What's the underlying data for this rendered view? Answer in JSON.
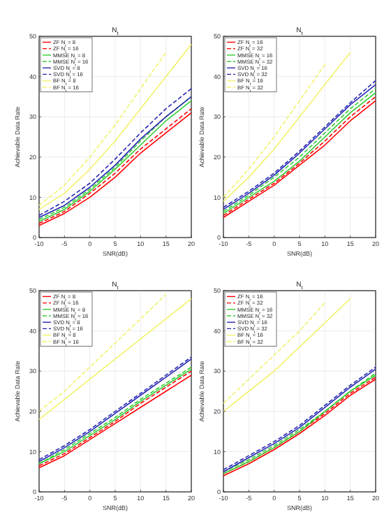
{
  "chart_data": [
    {
      "type": "line",
      "title": "N$_{t}$",
      "xlabel": "SNR(dB)",
      "ylabel": "Achievable Data Rate",
      "x": [
        -10,
        -5,
        0,
        5,
        10,
        15,
        20
      ],
      "xlim": [
        -10,
        20
      ],
      "xticks": [
        -10,
        -5,
        0,
        5,
        10,
        15,
        20
      ],
      "ylim": [
        0,
        50
      ],
      "yticks": [
        0,
        10,
        20,
        30,
        40,
        50
      ],
      "grid": true,
      "legend": "top left",
      "marker": "none",
      "series": [
        {
          "name": "ZF N$_{t}$ = 8",
          "color": "#ff0000",
          "line_style": "solid",
          "values": [
            3,
            6,
            10,
            15,
            21,
            26,
            31
          ]
        },
        {
          "name": "ZF N$_{t}$ = 16",
          "color": "#ff0000",
          "line_style": "dashed",
          "values": [
            3.5,
            6.5,
            11,
            16,
            22,
            27,
            32
          ]
        },
        {
          "name": "MMSE N$_{t}$ = 8",
          "color": "#33cc33",
          "line_style": "solid",
          "values": [
            4,
            7,
            11.5,
            17,
            23,
            29,
            34
          ]
        },
        {
          "name": "MMSE N$_{t}$ = 16",
          "color": "#33cc33",
          "line_style": "dashed",
          "values": [
            4.5,
            7.5,
            12,
            17.5,
            24,
            30,
            35
          ]
        },
        {
          "name": "SVD N$_{t}$ = 8",
          "color": "#2626b3",
          "line_style": "solid",
          "values": [
            5,
            8,
            12.5,
            18,
            24.5,
            30,
            35
          ]
        },
        {
          "name": "SVD N$_{t}$ = 16",
          "color": "#2626b3",
          "line_style": "dashed",
          "values": [
            5.5,
            9,
            13.5,
            19.5,
            26,
            32,
            37
          ]
        },
        {
          "name": "BF N$_{t}$ = 8",
          "color": "#f2f26b",
          "line_style": "solid",
          "values": [
            7,
            11,
            17,
            24,
            32,
            40,
            48
          ]
        },
        {
          "name": "BF N$_{t}$ = 16",
          "color": "#f2f26b",
          "line_style": "dashed",
          "values": [
            8,
            13,
            20,
            28,
            37,
            46,
            null
          ]
        }
      ]
    },
    {
      "type": "line",
      "title": "N$_{t}$",
      "xlabel": "SNR(dB)",
      "ylabel": "Achievable Data Rate",
      "x": [
        -10,
        -5,
        0,
        5,
        10,
        15,
        20
      ],
      "xlim": [
        -10,
        20
      ],
      "xticks": [
        -10,
        -5,
        0,
        5,
        10,
        15,
        20
      ],
      "ylim": [
        0,
        50
      ],
      "yticks": [
        0,
        10,
        20,
        30,
        40,
        50
      ],
      "grid": true,
      "legend": "top left",
      "marker": "none",
      "series": [
        {
          "name": "ZF N$_{t}$ = 16",
          "color": "#ff0000",
          "line_style": "solid",
          "values": [
            5,
            9,
            13,
            18,
            23,
            29,
            34
          ]
        },
        {
          "name": "ZF N$_{t}$ = 32",
          "color": "#ff0000",
          "line_style": "dashed",
          "values": [
            5.5,
            9.5,
            13.5,
            18.5,
            24,
            30,
            35
          ]
        },
        {
          "name": "MMSE N$_{t}$ = 16",
          "color": "#33cc33",
          "line_style": "solid",
          "values": [
            6,
            10,
            14,
            19,
            25,
            31,
            36
          ]
        },
        {
          "name": "MMSE N$_{t}$ = 32",
          "color": "#33cc33",
          "line_style": "dashed",
          "values": [
            6.5,
            10.5,
            15,
            20,
            26,
            32,
            37
          ]
        },
        {
          "name": "SVD N$_{t}$ = 16",
          "color": "#2626b3",
          "line_style": "solid",
          "values": [
            7,
            11,
            15.5,
            21,
            27,
            33,
            38
          ]
        },
        {
          "name": "SVD N$_{t}$ = 32",
          "color": "#2626b3",
          "line_style": "dashed",
          "values": [
            7.5,
            11.5,
            16,
            21.5,
            27.5,
            33.5,
            39
          ]
        },
        {
          "name": "BF N$_{t}$ = 16",
          "color": "#f2f26b",
          "line_style": "solid",
          "values": [
            9,
            15,
            22,
            30,
            38,
            46,
            null
          ]
        },
        {
          "name": "BF N$_{t}$ = 32",
          "color": "#f2f26b",
          "line_style": "dashed",
          "values": [
            10,
            17,
            25,
            34,
            43,
            null,
            null
          ]
        }
      ]
    },
    {
      "type": "line",
      "title": "N$_{t}$",
      "xlabel": "SNR(dB)",
      "ylabel": "Achievable Data Rate",
      "x": [
        -10,
        -5,
        0,
        5,
        10,
        15,
        20
      ],
      "xlim": [
        -10,
        20
      ],
      "xticks": [
        -10,
        -5,
        0,
        5,
        10,
        15,
        20
      ],
      "ylim": [
        0,
        50
      ],
      "yticks": [
        0,
        10,
        20,
        30,
        40,
        50
      ],
      "grid": true,
      "legend": "top left",
      "marker": "none",
      "series": [
        {
          "name": "ZF N$_{t}$ = 8",
          "color": "#ff0000",
          "line_style": "solid",
          "values": [
            6,
            9,
            13,
            17,
            21,
            25,
            29
          ]
        },
        {
          "name": "ZF N$_{t}$ = 16",
          "color": "#ff0000",
          "line_style": "dashed",
          "values": [
            6.5,
            9.5,
            13.5,
            17.5,
            22,
            26,
            30
          ]
        },
        {
          "name": "MMSE N$_{t}$ = 8",
          "color": "#33cc33",
          "line_style": "solid",
          "values": [
            7,
            10,
            14,
            18,
            22.5,
            26.5,
            30.5
          ]
        },
        {
          "name": "MMSE N$_{t}$ = 16",
          "color": "#33cc33",
          "line_style": "dashed",
          "values": [
            7,
            10.5,
            14.5,
            18.5,
            23,
            27,
            31
          ]
        },
        {
          "name": "SVD N$_{t}$ = 8",
          "color": "#2626b3",
          "line_style": "solid",
          "values": [
            7.5,
            11,
            15,
            19.5,
            24,
            28.5,
            33
          ]
        },
        {
          "name": "SVD N$_{t}$ = 16",
          "color": "#2626b3",
          "line_style": "dashed",
          "values": [
            8,
            11.5,
            15.5,
            20,
            24.5,
            29,
            33.5
          ]
        },
        {
          "name": "BF N$_{t}$ = 8",
          "color": "#f2f26b",
          "line_style": "solid",
          "values": [
            18,
            23,
            28,
            33,
            38,
            43,
            48
          ]
        },
        {
          "name": "BF N$_{t}$ = 16",
          "color": "#f2f26b",
          "line_style": "dashed",
          "values": [
            20,
            25,
            31,
            37,
            43,
            49,
            null
          ]
        }
      ]
    },
    {
      "type": "line",
      "title": "N$_{t}$",
      "xlabel": "SNR(dB)",
      "ylabel": "Achievable Data Rate",
      "x": [
        -10,
        -5,
        0,
        5,
        10,
        15,
        20
      ],
      "xlim": [
        -10,
        20
      ],
      "xticks": [
        -10,
        -5,
        0,
        5,
        10,
        15,
        20
      ],
      "ylim": [
        0,
        50
      ],
      "yticks": [
        0,
        10,
        20,
        30,
        40,
        50
      ],
      "grid": true,
      "legend": "top left",
      "marker": "none",
      "series": [
        {
          "name": "ZF N$_{t}$ = 16",
          "color": "#ff0000",
          "line_style": "solid",
          "values": [
            4,
            7,
            10.5,
            14.5,
            19,
            24,
            28
          ]
        },
        {
          "name": "ZF N$_{t}$ = 32",
          "color": "#ff0000",
          "line_style": "dashed",
          "values": [
            4.5,
            7.5,
            11,
            15,
            19.5,
            24.5,
            28.5
          ]
        },
        {
          "name": "MMSE N$_{t}$ = 16",
          "color": "#33cc33",
          "line_style": "solid",
          "values": [
            4.5,
            7.5,
            11,
            15,
            20,
            25,
            29
          ]
        },
        {
          "name": "MMSE N$_{t}$ = 32",
          "color": "#33cc33",
          "line_style": "dashed",
          "values": [
            5,
            8,
            11.5,
            15.5,
            20,
            25,
            29.5
          ]
        },
        {
          "name": "SVD N$_{t}$ = 16",
          "color": "#2626b3",
          "line_style": "solid",
          "values": [
            5,
            8.5,
            12,
            16,
            21,
            26,
            30.5
          ]
        },
        {
          "name": "SVD N$_{t}$ = 32",
          "color": "#2626b3",
          "line_style": "dashed",
          "values": [
            5.5,
            9,
            12.5,
            16.5,
            21.5,
            26.5,
            31
          ]
        },
        {
          "name": "BF N$_{t}$ = 16",
          "color": "#f2f26b",
          "line_style": "solid",
          "values": [
            20,
            25,
            30,
            36,
            42,
            48,
            null
          ]
        },
        {
          "name": "BF N$_{t}$ = 32",
          "color": "#f2f26b",
          "line_style": "dashed",
          "values": [
            22,
            28,
            34,
            40,
            47,
            null,
            null
          ]
        }
      ]
    }
  ]
}
